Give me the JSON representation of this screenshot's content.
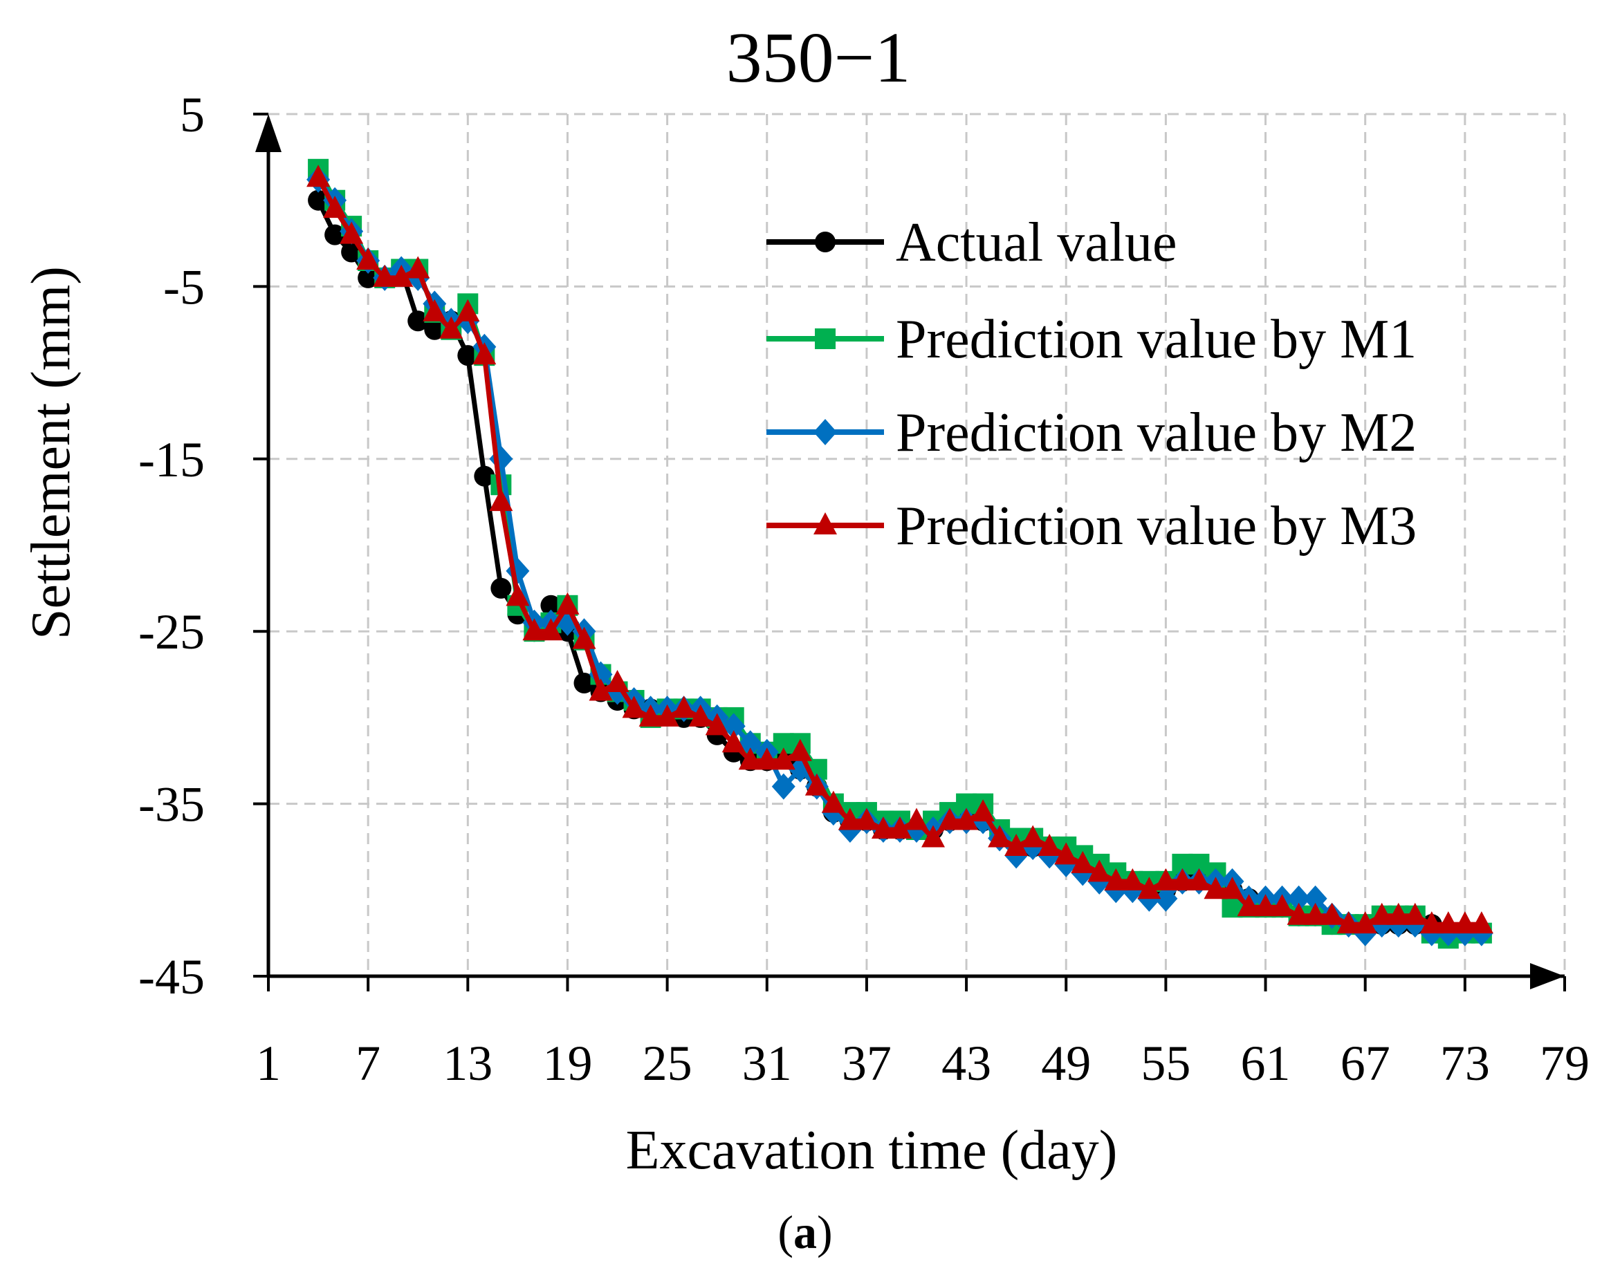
{
  "chart_data": {
    "type": "line",
    "title": "350−1",
    "xlabel": "Excavation time (day)",
    "ylabel": "Settlement (mm)",
    "caption_open": "(",
    "caption_letter": "a",
    "caption_close": ")",
    "xlim": [
      1,
      79
    ],
    "ylim": [
      -45,
      5
    ],
    "xticks": [
      1,
      7,
      13,
      19,
      25,
      31,
      37,
      43,
      49,
      55,
      61,
      67,
      73,
      79
    ],
    "xtick_labels": [
      "1",
      "7",
      "13",
      "19",
      "25",
      "31",
      "37",
      "43",
      "49",
      "55",
      "61",
      "67",
      "73",
      "79"
    ],
    "yticks": [
      5,
      -5,
      -15,
      -25,
      -35,
      -45
    ],
    "ytick_labels": [
      "5",
      "-5",
      "-15",
      "-25",
      "-35",
      "-45"
    ],
    "grid": true,
    "legend_position": "top-right",
    "x": [
      4,
      5,
      6,
      7,
      8,
      9,
      10,
      11,
      12,
      13,
      14,
      15,
      16,
      17,
      18,
      19,
      20,
      21,
      22,
      23,
      24,
      25,
      26,
      27,
      28,
      29,
      30,
      31,
      32,
      33,
      34,
      35,
      36,
      37,
      38,
      39,
      40,
      41,
      42,
      43,
      44,
      45,
      46,
      47,
      48,
      49,
      50,
      51,
      52,
      53,
      54,
      55,
      56,
      57,
      58,
      59,
      60,
      61,
      62,
      63,
      64,
      65,
      66,
      67,
      68,
      69,
      70,
      71,
      72,
      73,
      74
    ],
    "series": [
      {
        "name": "Actual value",
        "color": "#000000",
        "marker": "circle",
        "values": [
          0,
          -2,
          -3,
          -4.5,
          -4.5,
          -4,
          -7,
          -7.5,
          -7,
          -9,
          -16,
          -22.5,
          -24,
          -25,
          -23.5,
          -25,
          -28,
          -28.5,
          -29,
          -29.5,
          -29.5,
          -29.5,
          -30,
          -30,
          -31,
          -32,
          -32.5,
          -32.5,
          -32,
          -33,
          -34,
          -35.5,
          -36,
          -36,
          -36.5,
          -36.5,
          -36.5,
          -36.5,
          -36,
          -35.5,
          -36,
          -36.5,
          -37,
          -37.5,
          -37.5,
          -38,
          -38.5,
          -39,
          -39.5,
          -39.5,
          -40,
          -40,
          -39.5,
          -39,
          -39.5,
          -40,
          -40.5,
          -41,
          -41,
          -41.5,
          -41.5,
          -42,
          -42,
          -42,
          -42,
          -42,
          -42,
          -42,
          -42.5,
          -42.5,
          -42.5
        ]
      },
      {
        "name": "Prediction value by M1",
        "color": "#00b050",
        "marker": "square",
        "values": [
          1.8,
          0,
          -1.5,
          -3.5,
          -4.5,
          -4,
          -4,
          -6.5,
          -7.5,
          -6,
          -9,
          -16.5,
          -23.5,
          -25,
          -24.5,
          -23.5,
          -25.5,
          -27.5,
          -28.5,
          -29,
          -30,
          -29.5,
          -29.5,
          -29.5,
          -30,
          -30,
          -31.5,
          -32,
          -31.5,
          -31.5,
          -33,
          -35,
          -35.5,
          -35.5,
          -36,
          -36,
          -36.5,
          -36,
          -35.5,
          -35,
          -35,
          -36.5,
          -37,
          -37,
          -37.5,
          -37.5,
          -38,
          -38.5,
          -39,
          -39.5,
          -39.5,
          -39.5,
          -38.5,
          -38.5,
          -39,
          -41,
          -41,
          -41,
          -41,
          -41.5,
          -41.5,
          -42,
          -42,
          -42,
          -41.5,
          -41.5,
          -41.5,
          -42.5,
          -42.8,
          -42.5,
          -42.5
        ]
      },
      {
        "name": "Prediction value by M2",
        "color": "#0070c0",
        "marker": "diamond",
        "values": [
          1.2,
          0,
          -1.8,
          -3.5,
          -4.5,
          -4,
          -4.5,
          -6,
          -7,
          -7,
          -8.5,
          -15,
          -21.5,
          -24.5,
          -24.5,
          -24.5,
          -25,
          -27.5,
          -28.5,
          -29,
          -29.5,
          -29.5,
          -29.5,
          -29.5,
          -30,
          -30.5,
          -31.5,
          -32,
          -34,
          -33,
          -34,
          -35.5,
          -36.5,
          -36,
          -36.5,
          -36.5,
          -36.5,
          -36.5,
          -36,
          -36,
          -36,
          -37,
          -38,
          -37.5,
          -38,
          -38.5,
          -39,
          -39.5,
          -40,
          -40,
          -40.5,
          -40.5,
          -39.5,
          -39.5,
          -39.5,
          -39.5,
          -40.5,
          -40.5,
          -40.5,
          -40.5,
          -40.5,
          -41.5,
          -42,
          -42.5,
          -42,
          -42,
          -42,
          -42.5,
          -42.5,
          -42.5,
          -42.5
        ]
      },
      {
        "name": "Prediction value by M3",
        "color": "#c00000",
        "marker": "triangle",
        "values": [
          1.3,
          -0.5,
          -2,
          -3.5,
          -4.5,
          -4.5,
          -4,
          -6.5,
          -7.5,
          -6.5,
          -9,
          -17.5,
          -23,
          -25,
          -25,
          -23.5,
          -25.5,
          -28.5,
          -28,
          -29.5,
          -30,
          -30,
          -29.5,
          -30,
          -30.5,
          -31.5,
          -32.5,
          -32.5,
          -32.5,
          -32,
          -34,
          -35,
          -36,
          -36,
          -36.5,
          -36.5,
          -36,
          -37,
          -36,
          -36,
          -35.5,
          -37,
          -37.5,
          -37,
          -37.5,
          -38,
          -38.5,
          -39,
          -39.5,
          -39.5,
          -40,
          -39.5,
          -39.5,
          -39.5,
          -40,
          -40,
          -41,
          -41,
          -41,
          -41.5,
          -41.5,
          -41.5,
          -42,
          -42,
          -41.5,
          -41.5,
          -41.5,
          -42,
          -42,
          -42,
          -42
        ]
      }
    ]
  }
}
